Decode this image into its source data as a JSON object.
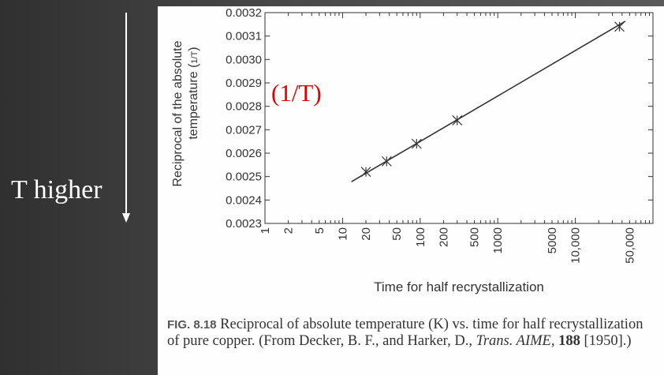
{
  "slide": {
    "side_label": "T higher",
    "overlay_label": "(1/T)",
    "colors": {
      "background": "#3c3c3c",
      "side_text": "#ffffff",
      "overlay_text": "#e00000",
      "line": "#333333"
    },
    "icons": [
      "down-arrow-icon"
    ]
  },
  "caption": {
    "fig_label": "FIG. 8.18",
    "text_1": " Reciprocal of absolute temperature (K) vs. time for half recrystallization of pure copper. (From Decker, B. F., and Harker, D., ",
    "journal": "Trans. AIME",
    "text_2": ", ",
    "volume": "188",
    "text_3": " [1950].)"
  },
  "chart_data": {
    "type": "line",
    "xlabel": "Time for half recrystallization",
    "ylabel": "Reciprocal of the absolute temperature (1/T)",
    "x_scale": "log",
    "xlim": [
      1,
      100000
    ],
    "ylim": [
      0.0023,
      0.0032
    ],
    "x_ticks": [
      {
        "value": 1,
        "label": "1"
      },
      {
        "value": 2,
        "label": "2"
      },
      {
        "value": 5,
        "label": "5"
      },
      {
        "value": 10,
        "label": "10"
      },
      {
        "value": 20,
        "label": "20"
      },
      {
        "value": 50,
        "label": "50"
      },
      {
        "value": 100,
        "label": "100"
      },
      {
        "value": 200,
        "label": "200"
      },
      {
        "value": 500,
        "label": "500"
      },
      {
        "value": 1000,
        "label": "1000"
      },
      {
        "value": 5000,
        "label": "5000"
      },
      {
        "value": 10000,
        "label": "10,000"
      },
      {
        "value": 50000,
        "label": "50,000"
      }
    ],
    "y_ticks": [
      "0.0023",
      "0.0024",
      "0.0025",
      "0.0026",
      "0.0027",
      "0.0028",
      "0.0029",
      "0.0030",
      "0.0031",
      "0.0032"
    ],
    "grid": false,
    "series": [
      {
        "points": [
          {
            "x": 20,
            "y": 0.00252
          },
          {
            "x": 37,
            "y": 0.002565
          },
          {
            "x": 90,
            "y": 0.00264
          },
          {
            "x": 300,
            "y": 0.00274
          },
          {
            "x": 37000,
            "y": 0.00314
          }
        ],
        "fit_line": [
          {
            "x": 13,
            "y": 0.002478
          },
          {
            "x": 44000,
            "y": 0.003163
          }
        ]
      }
    ]
  }
}
